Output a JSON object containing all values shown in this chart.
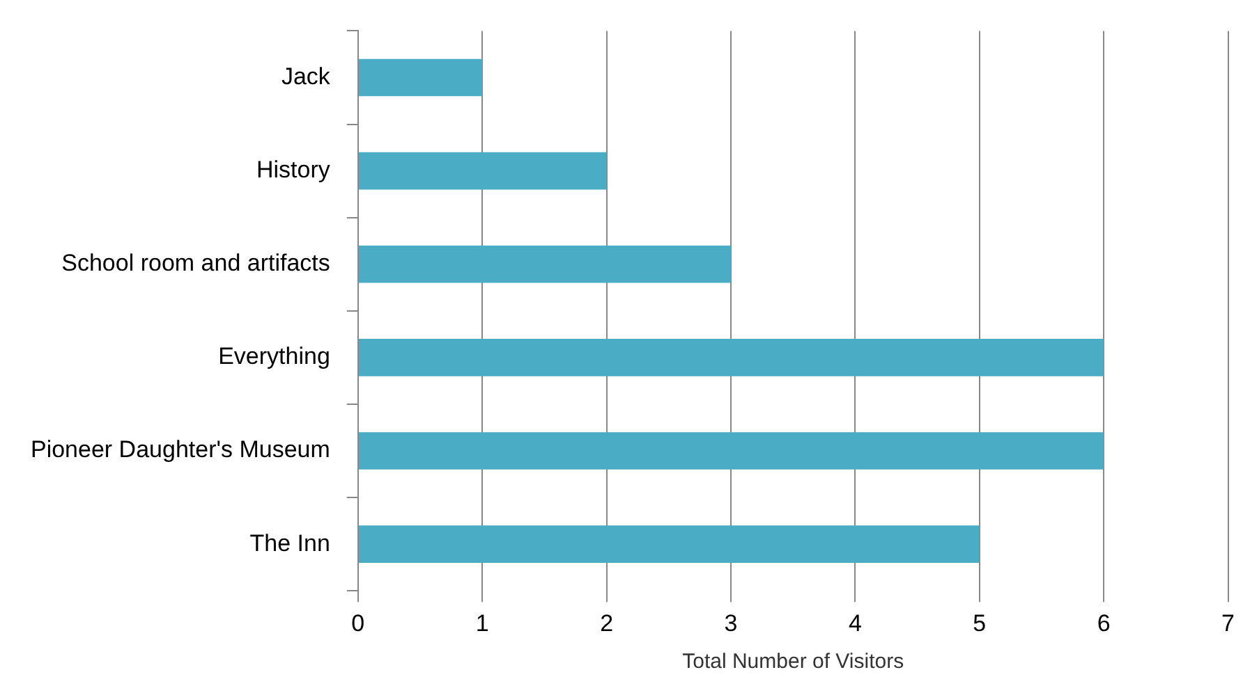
{
  "chart_data": {
    "type": "bar",
    "orientation": "horizontal",
    "xlabel": "Total Number of Visitors",
    "categories": [
      "Jack",
      "History",
      "School room and artifacts",
      "Everything",
      "Pioneer Daughter's Museum",
      "The Inn"
    ],
    "values": [
      1,
      2,
      3,
      6,
      6,
      5
    ],
    "color": "#4bacc6",
    "xlim": [
      0,
      7
    ],
    "xticks": [
      0,
      1,
      2,
      3,
      4,
      5,
      6,
      7
    ],
    "grid": "x",
    "legend": false
  }
}
